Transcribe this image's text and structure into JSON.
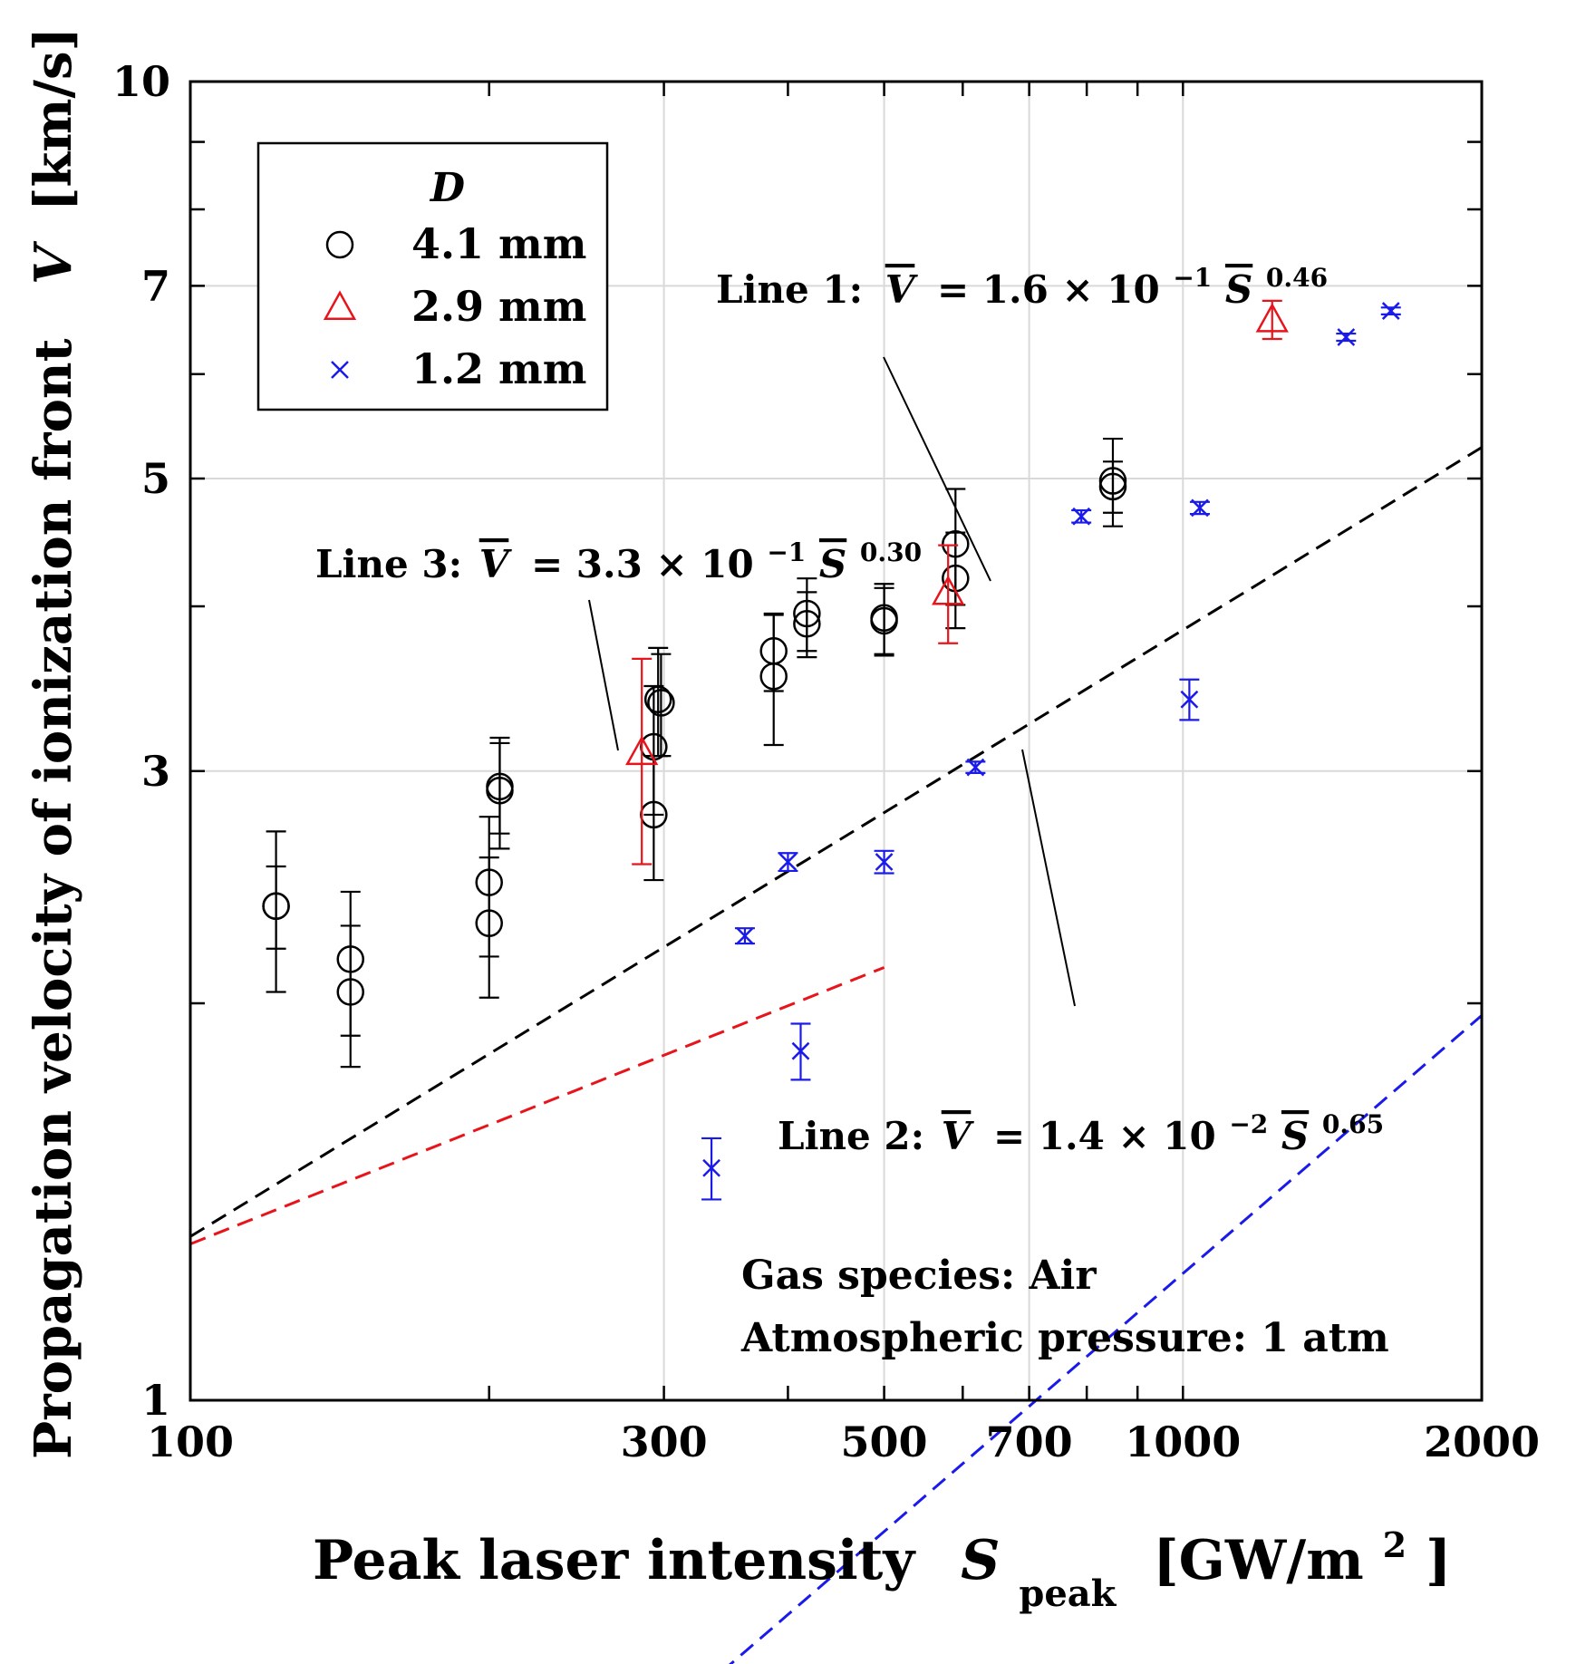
{
  "chart_data": {
    "type": "scatter",
    "x_scale": "log",
    "y_scale": "log",
    "xlim": [
      100,
      2000
    ],
    "ylim": [
      1,
      10
    ],
    "x_ticks": [
      100,
      300,
      500,
      700,
      1000,
      2000
    ],
    "x_tick_labels": [
      "100",
      "300",
      "500",
      "700",
      "1000",
      "2000"
    ],
    "x_minor_ticks": [
      200,
      400,
      600,
      800,
      900
    ],
    "y_ticks": [
      1,
      3,
      5,
      7,
      10
    ],
    "y_tick_labels": [
      "1",
      "3",
      "5",
      "7",
      "10"
    ],
    "y_minor_ticks": [
      2,
      4,
      6,
      8,
      9
    ],
    "grid": true,
    "xlabel": {
      "main": "Peak laser intensity",
      "symbol": "S",
      "sub": "peak",
      "unit": "[GW/m",
      "sup": "2",
      "unit_end": "]"
    },
    "ylabel": {
      "main": "Propagation velocity of ionization front",
      "symbol": "V",
      "unit": "[km/s]"
    },
    "legend": {
      "title": "D",
      "position": "top-left",
      "entries": [
        {
          "label": "4.1 mm",
          "marker": "circle",
          "color": "#000000"
        },
        {
          "label": "2.9 mm",
          "marker": "triangle",
          "color": "#e8141b"
        },
        {
          "label": "1.2 mm",
          "marker": "x",
          "color": "#1a1aeb"
        }
      ]
    },
    "series": [
      {
        "name": "4.1 mm",
        "marker": "circle",
        "color": "#000000",
        "points": [
          {
            "x": 122,
            "y": 2.37,
            "err": 0.17
          },
          {
            "x": 122,
            "y": 2.37,
            "err": 0.33
          },
          {
            "x": 145,
            "y": 2.16,
            "err": 0.27
          },
          {
            "x": 145,
            "y": 2.04,
            "err": 0.25
          },
          {
            "x": 200,
            "y": 2.47,
            "err": 0.3
          },
          {
            "x": 200,
            "y": 2.3,
            "err": 0.28
          },
          {
            "x": 205,
            "y": 2.92,
            "err": 0.23
          },
          {
            "x": 205,
            "y": 2.9,
            "err": 0.28
          },
          {
            "x": 293,
            "y": 3.13,
            "err": 0.35
          },
          {
            "x": 296,
            "y": 3.4,
            "err": 0.32
          },
          {
            "x": 298,
            "y": 3.38,
            "err": 0.3
          },
          {
            "x": 293,
            "y": 2.78,
            "err": 0.3
          },
          {
            "x": 387,
            "y": 3.7,
            "err": 0.25
          },
          {
            "x": 387,
            "y": 3.54,
            "err": 0.4
          },
          {
            "x": 418,
            "y": 3.95,
            "err": 0.25
          },
          {
            "x": 418,
            "y": 3.88,
            "err": 0.22
          },
          {
            "x": 500,
            "y": 3.92,
            "err": 0.24
          },
          {
            "x": 500,
            "y": 3.9,
            "err": 0.23
          },
          {
            "x": 590,
            "y": 4.46,
            "err": 0.45
          },
          {
            "x": 590,
            "y": 4.2,
            "err": 0.35
          },
          {
            "x": 850,
            "y": 4.98,
            "err": 0.38
          },
          {
            "x": 850,
            "y": 4.93,
            "err": 0.22
          }
        ]
      },
      {
        "name": "2.9 mm",
        "marker": "triangle",
        "color": "#e8141b",
        "points": [
          {
            "x": 285,
            "y": 3.1,
            "err": 0.55
          },
          {
            "x": 580,
            "y": 4.1,
            "err": 0.35
          },
          {
            "x": 1230,
            "y": 6.6,
            "err": 0.22
          }
        ]
      },
      {
        "name": "1.2 mm",
        "marker": "x",
        "color": "#1a1aeb",
        "points": [
          {
            "x": 335,
            "y": 1.5,
            "err": 0.08
          },
          {
            "x": 362,
            "y": 2.25,
            "err": 0.03
          },
          {
            "x": 400,
            "y": 2.56,
            "err": 0.04
          },
          {
            "x": 412,
            "y": 1.84,
            "err": 0.09
          },
          {
            "x": 500,
            "y": 2.56,
            "err": 0.05
          },
          {
            "x": 618,
            "y": 3.02,
            "err": 0.03
          },
          {
            "x": 790,
            "y": 4.68,
            "err": 0.05
          },
          {
            "x": 1015,
            "y": 3.4,
            "err": 0.12
          },
          {
            "x": 1040,
            "y": 4.75,
            "err": 0.05
          },
          {
            "x": 1460,
            "y": 6.4,
            "err": 0.04
          },
          {
            "x": 1620,
            "y": 6.7,
            "err": 0.04
          }
        ]
      }
    ],
    "fit_lines": [
      {
        "name": "Line 1",
        "color": "#000000",
        "coef": 0.16,
        "exp": 0.46,
        "x_range": [
          100,
          2000
        ]
      },
      {
        "name": "Line 2",
        "color": "#1a1aeb",
        "coef": 0.014,
        "exp": 0.65,
        "x_range": [
          300,
          2000
        ]
      },
      {
        "name": "Line 3",
        "color": "#e8141b",
        "coef": 0.33,
        "exp": 0.3,
        "x_range": [
          100,
          500
        ]
      }
    ],
    "annotations": [
      {
        "name": "line1",
        "prefix": "Line 1:",
        "body": "= 1.6 × 10",
        "exp_pow": "−1",
        "exp_val": "0.46"
      },
      {
        "name": "line3",
        "prefix": "Line 3:",
        "body": "= 3.3 × 10",
        "exp_pow": "−1",
        "exp_val": "0.30"
      },
      {
        "name": "line2",
        "prefix": "Line 2:",
        "body": "= 1.4 × 10",
        "exp_pow": "−2",
        "exp_val": "0.65"
      }
    ],
    "annotation_symbols": {
      "v": "V",
      "s": "S"
    },
    "notes": [
      "Gas species: Air",
      "Atmospheric pressure: 1 atm"
    ]
  }
}
